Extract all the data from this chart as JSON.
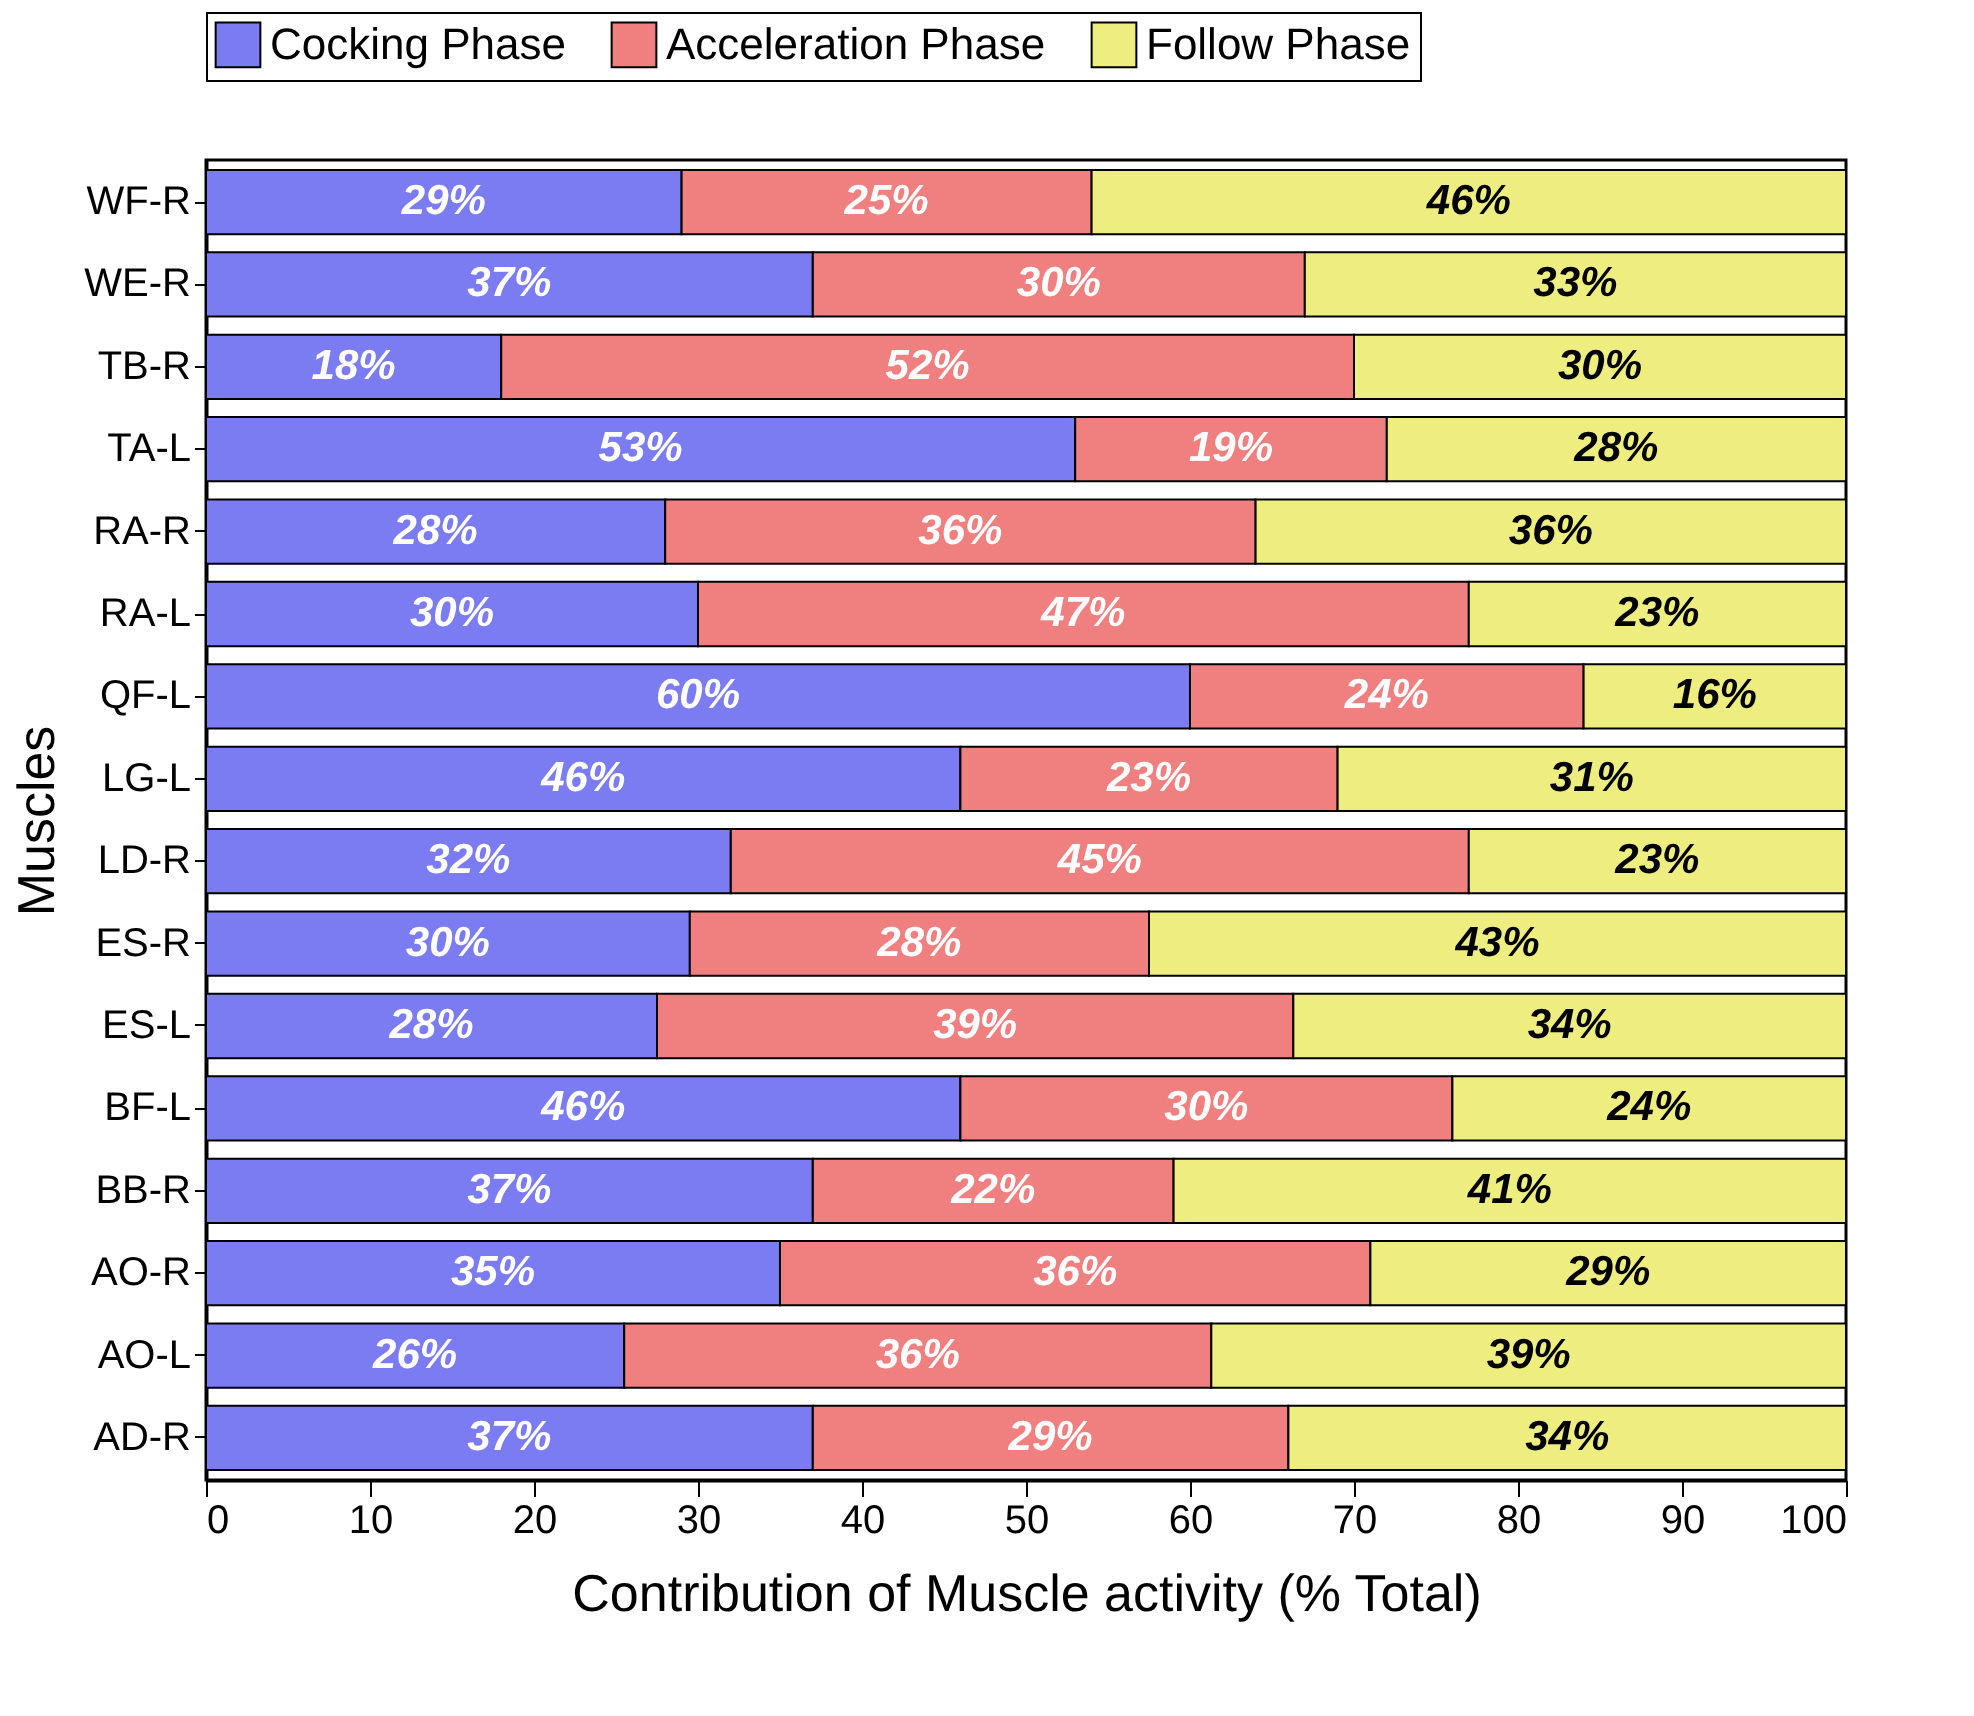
{
  "chart_data": {
    "type": "bar",
    "orientation": "horizontal",
    "stacked": true,
    "categories": [
      "WF-R",
      "WE-R",
      "TB-R",
      "TA-L",
      "RA-R",
      "RA-L",
      "QF-L",
      "LG-L",
      "LD-R",
      "ES-R",
      "ES-L",
      "BF-L",
      "BB-R",
      "AO-R",
      "AO-L",
      "AD-R"
    ],
    "series": [
      {
        "name": "Cocking Phase",
        "color": "#7b7bf2",
        "values": [
          29,
          37,
          18,
          53,
          28,
          30,
          60,
          46,
          32,
          29.5,
          27.5,
          46,
          37,
          35,
          25.5,
          37
        ],
        "value_labels": [
          "29%",
          "37%",
          "18%",
          "53%",
          "28%",
          "30%",
          "60%",
          "46%",
          "32%",
          "30%",
          "28%",
          "46%",
          "37%",
          "35%",
          "26%",
          "37%"
        ]
      },
      {
        "name": "Acceleration Phase",
        "color": "#f08080",
        "values": [
          25,
          30,
          52,
          19,
          36,
          47,
          24,
          23,
          45,
          28,
          38.8,
          30,
          22,
          36,
          35.8,
          29
        ],
        "value_labels": [
          "25%",
          "30%",
          "52%",
          "19%",
          "36%",
          "47%",
          "24%",
          "23%",
          "45%",
          "28%",
          "39%",
          "30%",
          "22%",
          "36%",
          "36%",
          "29%"
        ]
      },
      {
        "name": "Follow Phase",
        "color": "#eeee80",
        "values": [
          46,
          33,
          30,
          28,
          36,
          23,
          16,
          31,
          23,
          42.5,
          33.7,
          24,
          41,
          29,
          38.7,
          34
        ],
        "value_labels": [
          "46%",
          "33%",
          "30%",
          "28%",
          "36%",
          "23%",
          "16%",
          "31%",
          "23%",
          "43%",
          "34%",
          "24%",
          "41%",
          "29%",
          "39%",
          "34%"
        ]
      }
    ],
    "xlabel": "Contribution of Muscle activity (% Total)",
    "ylabel": "Muscles",
    "xlim": [
      0,
      100
    ],
    "xticks": [
      0,
      10,
      20,
      30,
      40,
      50,
      60,
      70,
      80,
      90,
      100
    ],
    "legend": "top",
    "grid": false
  }
}
